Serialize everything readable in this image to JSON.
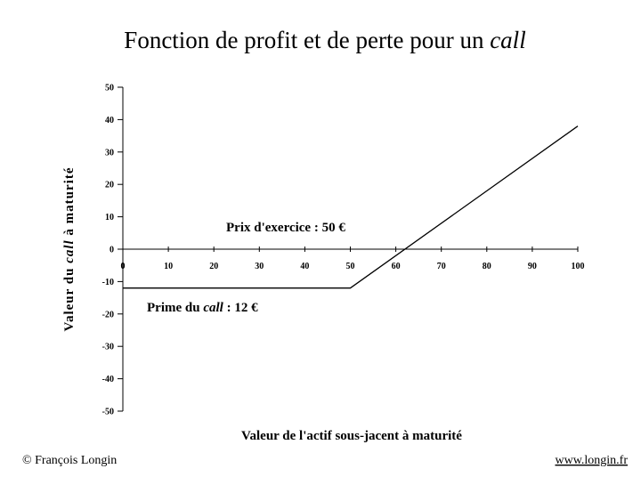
{
  "chart_data": {
    "type": "line",
    "title": [
      "Fonction de profit et de perte pour un ",
      "call"
    ],
    "y_label": [
      "Valeur du ",
      "call",
      " à maturité"
    ],
    "x_label": "Valeur de l'actif sous-jacent à maturité",
    "annotations": [
      [
        "Prix d'exercice : 50 €"
      ],
      [
        "Prime du ",
        "call",
        " : 12 €"
      ]
    ],
    "x": [
      0,
      50,
      100
    ],
    "series": [
      {
        "color": "#000000",
        "values": [
          -12,
          -12,
          38
        ]
      }
    ],
    "xlim": [
      0,
      100
    ],
    "xticks": [
      0,
      10,
      20,
      30,
      40,
      50,
      60,
      70,
      80,
      90,
      100
    ],
    "ylim": [
      -50,
      50
    ],
    "yticks": [
      -50,
      -40,
      -30,
      -20,
      -10,
      0,
      10,
      20,
      30,
      40,
      50
    ],
    "grid": false
  },
  "footer": {
    "left": "© François Longin",
    "right": "www.longin.fr"
  }
}
